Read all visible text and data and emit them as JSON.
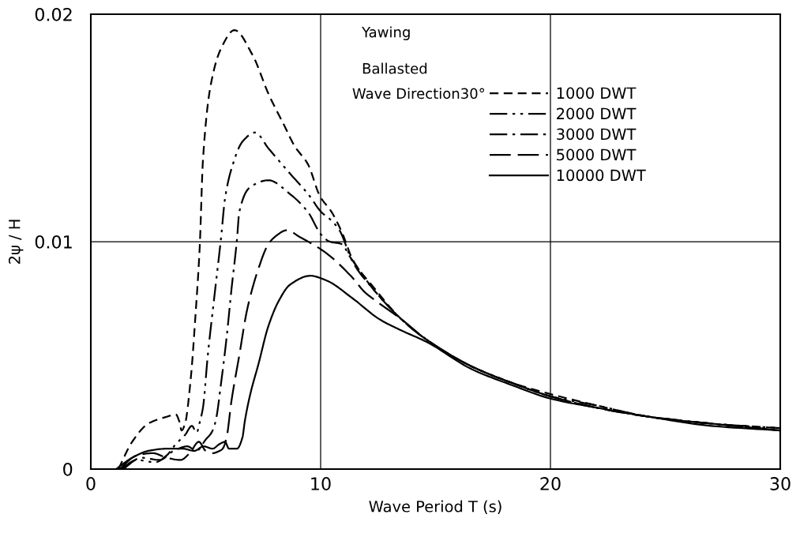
{
  "chart_data": {
    "type": "line",
    "xlabel": "Wave Period T (s)",
    "ylabel": "2ψ / H",
    "annotations": [
      "Yawing",
      "Ballasted",
      "Wave Direction30°"
    ],
    "xlim": [
      0,
      30
    ],
    "xticks": [
      0,
      10,
      20,
      30
    ],
    "ylim": [
      0,
      0.02
    ],
    "yticks": [
      0,
      0.01,
      0.02
    ],
    "grid": true,
    "legend": "top right",
    "marker": "none",
    "series": [
      {
        "name": "1000 DWT",
        "color": "#000000",
        "line_style": "dashed",
        "x": [
          1.2,
          1.8,
          2.5,
          3.3,
          3.7,
          3.85,
          3.95,
          4.1,
          4.35,
          4.55,
          4.74,
          4.88,
          5.22,
          5.67,
          6.25,
          7.04,
          7.73,
          8.42,
          8.87,
          9.45,
          9.97,
          10.48,
          10.93,
          11.4,
          12.3,
          13.5,
          14.6,
          16.6,
          18.3,
          20,
          22,
          24.3,
          27,
          30
        ],
        "values": [
          0,
          0.0012,
          0.002,
          0.0023,
          0.0024,
          0.0021,
          0.0017,
          0.002,
          0.004,
          0.0067,
          0.0098,
          0.0136,
          0.0169,
          0.0185,
          0.0193,
          0.0182,
          0.0165,
          0.0151,
          0.0142,
          0.0134,
          0.012,
          0.0113,
          0.0104,
          0.0092,
          0.008,
          0.0066,
          0.0057,
          0.0045,
          0.0038,
          0.0033,
          0.0028,
          0.0023,
          0.002,
          0.0018
        ]
      },
      {
        "name": "2000 DWT",
        "color": "#000000",
        "line_style": "dashdotdot",
        "x": [
          1.3,
          2.0,
          2.8,
          3.3,
          3.7,
          4.1,
          4.4,
          4.6,
          4.75,
          4.88,
          5.09,
          5.4,
          5.67,
          5.84,
          6.12,
          6.6,
          7.15,
          7.73,
          8.66,
          9.45,
          10.03,
          10.5,
          10.82,
          11.4,
          12.3,
          13.5,
          14.6,
          16.6,
          18.3,
          20,
          22,
          24.3,
          27,
          30
        ],
        "values": [
          0,
          0.0004,
          0.0003,
          0.0006,
          0.0011,
          0.0015,
          0.0019,
          0.0016,
          0.0021,
          0.0027,
          0.005,
          0.0078,
          0.0102,
          0.0119,
          0.0132,
          0.0144,
          0.0148,
          0.0141,
          0.013,
          0.0121,
          0.0113,
          0.0109,
          0.0105,
          0.0091,
          0.0079,
          0.0066,
          0.0057,
          0.0045,
          0.0038,
          0.0032,
          0.0028,
          0.0023,
          0.002,
          0.0018
        ]
      },
      {
        "name": "3000 DWT",
        "color": "#000000",
        "line_style": "dashdot",
        "x": [
          1.4,
          2.2,
          3.0,
          3.6,
          4.2,
          4.6,
          5.0,
          5.25,
          5.43,
          5.67,
          5.91,
          6.12,
          6.36,
          6.46,
          6.94,
          7.73,
          8.66,
          9.45,
          10.03,
          10.4,
          10.9,
          11.3,
          12.3,
          13.5,
          14.6,
          16.6,
          18.3,
          20,
          22,
          24.3,
          27,
          30
        ],
        "values": [
          0,
          0.0005,
          0.0004,
          0.0008,
          0.001,
          0.0008,
          0.0013,
          0.0016,
          0.0021,
          0.0038,
          0.0058,
          0.0079,
          0.0101,
          0.0113,
          0.0124,
          0.0127,
          0.0121,
          0.0113,
          0.0103,
          0.01,
          0.0099,
          0.0093,
          0.0079,
          0.0066,
          0.0057,
          0.0045,
          0.0038,
          0.0032,
          0.0027,
          0.0023,
          0.002,
          0.0017
        ]
      },
      {
        "name": "5000 DWT",
        "color": "#000000",
        "line_style": "longdash",
        "x": [
          1.25,
          2.0,
          2.7,
          3.3,
          3.9,
          4.3,
          4.7,
          5.0,
          5.3,
          5.6,
          5.74,
          5.91,
          6.12,
          6.46,
          6.8,
          7.29,
          7.73,
          8.0,
          8.52,
          9.1,
          10.24,
          11.4,
          11.9,
          12.4,
          13.5,
          14.6,
          16.6,
          18.3,
          20,
          22,
          24.3,
          27,
          30
        ],
        "values": [
          0,
          0.0006,
          0.0007,
          0.0005,
          0.0004,
          0.0007,
          0.0012,
          0.0008,
          0.0007,
          0.0008,
          0.0009,
          0.0014,
          0.003,
          0.005,
          0.007,
          0.0088,
          0.0099,
          0.0102,
          0.0105,
          0.0102,
          0.0095,
          0.0084,
          0.0078,
          0.0074,
          0.0066,
          0.0057,
          0.0045,
          0.0038,
          0.0032,
          0.0027,
          0.0023,
          0.002,
          0.0017
        ]
      },
      {
        "name": "10000 DWT",
        "color": "#000000",
        "line_style": "solid",
        "x": [
          1.1,
          1.8,
          2.5,
          3.37,
          4.0,
          4.5,
          4.9,
          5.3,
          5.6,
          5.84,
          6.01,
          6.36,
          6.6,
          6.7,
          6.94,
          7.29,
          7.73,
          8.18,
          8.66,
          9.55,
          10.24,
          11.4,
          12.54,
          13.5,
          14.6,
          16.56,
          18.3,
          20,
          22,
          24.3,
          27,
          30
        ],
        "values": [
          0,
          0.0005,
          0.0008,
          0.0009,
          0.0009,
          0.0008,
          0.001,
          0.0009,
          0.0011,
          0.0012,
          0.0009,
          0.0009,
          0.0014,
          0.0021,
          0.0033,
          0.0046,
          0.0063,
          0.0074,
          0.0081,
          0.0085,
          0.0083,
          0.0075,
          0.0066,
          0.0061,
          0.0056,
          0.0044,
          0.0037,
          0.0031,
          0.0027,
          0.0023,
          0.0019,
          0.0017
        ]
      }
    ]
  }
}
